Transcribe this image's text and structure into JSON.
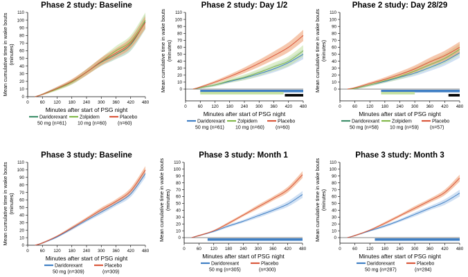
{
  "colors": {
    "daridorexant": "#3f7fc4",
    "daridorexant_band": "#a9c7ea",
    "zolpidem": "#82b84a",
    "zolpidem_band": "#c3e0a0",
    "placebo": "#d9573b",
    "placebo_band": "#ee9a6c",
    "phase2_daridorexant": "#3f8f6a",
    "phase2_daridorexant_band": "#9ccbb0",
    "black_bar": "#000000"
  },
  "chart_data": [
    {
      "type": "area",
      "title": "Phase 2 study: Baseline",
      "xlabel": "Minutes after start of PSG night",
      "ylabel": "Mean cumulative time in wake bouts (minutes)",
      "ylabel_lines": [
        "Mean cumulative time in wake bouts",
        "(minutes)"
      ],
      "xlim": [
        0,
        480
      ],
      "ylim": [
        0,
        110
      ],
      "x_ticks": [
        "0",
        "60",
        "120",
        "180",
        "240",
        "300",
        "360",
        "420",
        "480"
      ],
      "y_ticks": [
        "0",
        "10",
        "20",
        "30",
        "40",
        "50",
        "60",
        "70",
        "80",
        "90",
        "100",
        "110"
      ],
      "x": [
        30,
        60,
        120,
        180,
        240,
        300,
        360,
        420,
        480
      ],
      "series": [
        {
          "name": "Daridorexant",
          "dose": "50 mg (n=61)",
          "color_key": "phase2_daridorexant",
          "values": [
            0,
            3,
            11,
            19,
            32,
            45,
            55,
            68,
            98
          ],
          "band": [
            0,
            1,
            2,
            3,
            4,
            5,
            6,
            8,
            10
          ]
        },
        {
          "name": "Zolpidem",
          "dose": "10 mg (n=60)",
          "color_key": "zolpidem",
          "values": [
            0,
            3,
            10,
            19,
            32,
            46,
            60,
            72,
            100
          ],
          "band": [
            0,
            1,
            2,
            3,
            4,
            5,
            6,
            8,
            10
          ]
        },
        {
          "name": "Placebo",
          "dose": "(n=60)",
          "color_key": "placebo",
          "values": [
            0,
            3,
            11,
            20,
            32,
            46,
            57,
            70,
            97
          ],
          "band": [
            0,
            1,
            2,
            3,
            4,
            5,
            6,
            7,
            8
          ]
        }
      ],
      "significance_bars": [],
      "legend": [
        {
          "name": "Daridorexant",
          "dose": "50 mg (n=61)",
          "color_key": "phase2_daridorexant"
        },
        {
          "name": "Zolpidem",
          "dose": "10 mg (n=60)",
          "color_key": "zolpidem"
        },
        {
          "name": "Placebo",
          "dose": "(n=60)",
          "color_key": "placebo"
        }
      ]
    },
    {
      "type": "area",
      "title": "Phase 2 study: Day 1/2",
      "xlabel": "Minutes after start of PSG night",
      "ylabel": "Mean cumulative time in wake bouts (minutes)",
      "ylabel_lines": [
        "Mean cumulative time in wake bouts",
        "(minutes)"
      ],
      "xlim": [
        0,
        480
      ],
      "ylim": [
        -15,
        110
      ],
      "x_ticks": [
        "0",
        "60",
        "120",
        "180",
        "240",
        "300",
        "360",
        "420",
        "480"
      ],
      "y_ticks": [
        "0",
        "10",
        "20",
        "30",
        "40",
        "50",
        "60",
        "70",
        "80",
        "90",
        "100",
        "110"
      ],
      "x": [
        30,
        60,
        120,
        180,
        240,
        300,
        360,
        420,
        480
      ],
      "series": [
        {
          "name": "Daridorexant",
          "dose": "50 mg (n=61)",
          "color_key": "daridorexant",
          "values": [
            0,
            2,
            6,
            11,
            16,
            22,
            29,
            38,
            50
          ],
          "band": [
            0,
            1,
            2,
            2,
            3,
            4,
            5,
            6,
            7
          ]
        },
        {
          "name": "Zolpidem",
          "dose": "10 mg (n=60)",
          "color_key": "zolpidem",
          "values": [
            0,
            2,
            6,
            12,
            17,
            24,
            32,
            40,
            55
          ],
          "band": [
            0,
            1,
            2,
            3,
            4,
            5,
            6,
            7,
            8
          ]
        },
        {
          "name": "Placebo",
          "dose": "(n=60)",
          "color_key": "placebo",
          "values": [
            0,
            3,
            10,
            18,
            27,
            37,
            48,
            60,
            77
          ],
          "band": [
            0,
            1,
            2,
            3,
            4,
            5,
            6,
            7,
            8
          ]
        }
      ],
      "significance_bars": [
        {
          "series": "Daridorexant",
          "color_key": "daridorexant",
          "start": 60,
          "end": 480,
          "level": -3
        },
        {
          "series": "Zolpidem",
          "color_key": "zolpidem_band",
          "start": 60,
          "end": 400,
          "level": -6
        },
        {
          "series": "Black",
          "color_key": "black_bar",
          "start": 405,
          "end": 480,
          "level": -9
        }
      ],
      "legend": [
        {
          "name": "Daridorexant",
          "dose": "50 mg (n=61)",
          "color_key": "daridorexant"
        },
        {
          "name": "Zolpidem",
          "dose": "10 mg (n=60)",
          "color_key": "zolpidem"
        },
        {
          "name": "Placebo",
          "dose": "(n=60)",
          "color_key": "placebo"
        }
      ]
    },
    {
      "type": "area",
      "title": "Phase 2 study: Day 28/29",
      "xlabel": "Minutes after start of PSG night",
      "ylabel": "Mean cumulative time in wake bouts (minutes)",
      "ylabel_lines": [
        "Mean cumulative time in wake bouts",
        "(minutes)"
      ],
      "xlim": [
        0,
        480
      ],
      "ylim": [
        -15,
        110
      ],
      "x_ticks": [
        "0",
        "60",
        "120",
        "180",
        "240",
        "300",
        "360",
        "420",
        "480"
      ],
      "y_ticks": [
        "0",
        "10",
        "20",
        "30",
        "40",
        "50",
        "60",
        "70",
        "80",
        "90",
        "100",
        "110"
      ],
      "x": [
        30,
        60,
        120,
        180,
        240,
        300,
        360,
        420,
        480
      ],
      "series": [
        {
          "name": "Daridorexant",
          "dose": "50 mg (n=58)",
          "color_key": "daridorexant",
          "values": [
            0,
            1,
            6,
            11,
            17,
            23,
            31,
            40,
            52
          ],
          "band": [
            0,
            1,
            2,
            2,
            3,
            4,
            5,
            6,
            7
          ]
        },
        {
          "name": "Zolpidem",
          "dose": "10 mg (n=59)",
          "color_key": "zolpidem",
          "values": [
            0,
            1,
            6,
            12,
            18,
            26,
            35,
            44,
            57
          ],
          "band": [
            0,
            1,
            2,
            3,
            4,
            5,
            6,
            7,
            8
          ]
        },
        {
          "name": "Placebo",
          "dose": "(n=57)",
          "color_key": "placebo",
          "values": [
            0,
            2,
            8,
            14,
            21,
            29,
            39,
            48,
            60
          ],
          "band": [
            0,
            1,
            2,
            3,
            4,
            5,
            6,
            7,
            8
          ]
        }
      ],
      "significance_bars": [
        {
          "series": "Daridorexant",
          "color_key": "daridorexant",
          "start": 165,
          "end": 480,
          "level": -3
        },
        {
          "series": "Zolpidem",
          "color_key": "zolpidem_band",
          "start": 165,
          "end": 300,
          "level": -6
        },
        {
          "series": "Black",
          "color_key": "black_bar",
          "start": 435,
          "end": 480,
          "level": -9
        }
      ],
      "legend": [
        {
          "name": "Daridorexant",
          "dose": "50 mg (n=58)",
          "color_key": "phase2_daridorexant"
        },
        {
          "name": "Zolpidem",
          "dose": "10 mg (n=59)",
          "color_key": "zolpidem"
        },
        {
          "name": "Placebo",
          "dose": "(n=57)",
          "color_key": "placebo"
        }
      ]
    },
    {
      "type": "area",
      "title": "Phase 3 study: Baseline",
      "xlabel": "Minutes after start of PSG night",
      "ylabel": "Mean cumulative time in wake bouts (minutes)",
      "ylabel_lines": [
        "Mean cumulative time in wake bouts",
        "(minutes)"
      ],
      "xlim": [
        0,
        480
      ],
      "ylim": [
        0,
        110
      ],
      "x_ticks": [
        "0",
        "60",
        "120",
        "180",
        "240",
        "300",
        "360",
        "420",
        "480"
      ],
      "y_ticks": [
        "0",
        "10",
        "20",
        "30",
        "40",
        "50",
        "60",
        "70",
        "80",
        "90",
        "100",
        "110"
      ],
      "x": [
        30,
        60,
        120,
        180,
        240,
        300,
        360,
        420,
        480
      ],
      "series": [
        {
          "name": "Daridorexant",
          "dose": "50 mg (n=309)",
          "color_key": "daridorexant",
          "values": [
            0,
            3,
            11,
            22,
            33,
            44,
            55,
            68,
            95
          ],
          "band": [
            0,
            1,
            1,
            2,
            2,
            3,
            3,
            4,
            5
          ]
        },
        {
          "name": "Placebo",
          "dose": "(n=309)",
          "color_key": "placebo",
          "values": [
            0,
            3,
            12,
            23,
            35,
            47,
            58,
            72,
            100
          ],
          "band": [
            0,
            1,
            1,
            2,
            2,
            3,
            3,
            4,
            5
          ]
        }
      ],
      "significance_bars": [],
      "legend": [
        {
          "name": "Daridorexant",
          "dose": "50 mg (n=309)",
          "color_key": "daridorexant"
        },
        {
          "name": "Placebo",
          "dose": "(n=309)",
          "color_key": "placebo"
        }
      ]
    },
    {
      "type": "area",
      "title": "Phase 3 study: Month 1",
      "xlabel": "Minutes after start of PSG night",
      "ylabel": "Mean cumulative time in wake bouts (minutes)",
      "ylabel_lines": [
        "Mean cumulative time in wake bouts",
        "(minutes)"
      ],
      "xlim": [
        0,
        480
      ],
      "ylim": [
        -8,
        110
      ],
      "x_ticks": [
        "0",
        "60",
        "120",
        "180",
        "240",
        "300",
        "360",
        "420",
        "480"
      ],
      "y_ticks": [
        "0",
        "10",
        "20",
        "30",
        "40",
        "50",
        "60",
        "70",
        "80",
        "90",
        "100",
        "110"
      ],
      "x": [
        30,
        60,
        120,
        180,
        240,
        300,
        360,
        420,
        480
      ],
      "series": [
        {
          "name": "Daridorexant",
          "dose": "50 mg (n=305)",
          "color_key": "daridorexant",
          "values": [
            0,
            3,
            9,
            17,
            24,
            32,
            40,
            49,
            63
          ],
          "band": [
            0,
            1,
            1,
            2,
            2,
            3,
            3,
            4,
            5
          ]
        },
        {
          "name": "Placebo",
          "dose": "(n=300)",
          "color_key": "placebo",
          "values": [
            0,
            3,
            10,
            21,
            33,
            45,
            57,
            70,
            92
          ],
          "band": [
            0,
            1,
            1,
            2,
            2,
            3,
            3,
            4,
            5
          ]
        }
      ],
      "significance_bars": [
        {
          "series": "Daridorexant",
          "color_key": "daridorexant",
          "start": 95,
          "end": 480,
          "level": -3
        }
      ],
      "legend": [
        {
          "name": "Daridorexant",
          "dose": "50 mg (n=305)",
          "color_key": "daridorexant"
        },
        {
          "name": "Placebo",
          "dose": "(n=300)",
          "color_key": "placebo"
        }
      ]
    },
    {
      "type": "area",
      "title": "Phase 3 study: Month 3",
      "xlabel": "Minutes after start of PSG night",
      "ylabel": "Mean cumulative time in wake bouts (minutes)",
      "ylabel_lines": [
        "Mean cumulative time in wake bouts",
        "(minutes)"
      ],
      "xlim": [
        0,
        480
      ],
      "ylim": [
        -8,
        110
      ],
      "x_ticks": [
        "0",
        "60",
        "120",
        "180",
        "240",
        "300",
        "360",
        "420",
        "480"
      ],
      "y_ticks": [
        "0",
        "10",
        "20",
        "30",
        "40",
        "50",
        "60",
        "70",
        "80",
        "90",
        "100",
        "110"
      ],
      "x": [
        30,
        60,
        120,
        180,
        240,
        300,
        360,
        420,
        480
      ],
      "series": [
        {
          "name": "Daridorexant",
          "dose": "50 mg (n=287)",
          "color_key": "daridorexant",
          "values": [
            0,
            3,
            10,
            17,
            25,
            34,
            43,
            52,
            65
          ],
          "band": [
            0,
            1,
            1,
            2,
            2,
            3,
            3,
            4,
            5
          ]
        },
        {
          "name": "Placebo",
          "dose": "(n=284)",
          "color_key": "placebo",
          "values": [
            0,
            3,
            11,
            21,
            32,
            43,
            54,
            66,
            87
          ],
          "band": [
            0,
            1,
            1,
            2,
            2,
            3,
            3,
            4,
            5
          ]
        }
      ],
      "significance_bars": [
        {
          "series": "Daridorexant",
          "color_key": "daridorexant",
          "start": 140,
          "end": 480,
          "level": -3
        }
      ],
      "legend": [
        {
          "name": "Daridorexant",
          "dose": "50 mg (n=287)",
          "color_key": "daridorexant"
        },
        {
          "name": "Placebo",
          "dose": "(n=284)",
          "color_key": "placebo"
        }
      ]
    }
  ]
}
